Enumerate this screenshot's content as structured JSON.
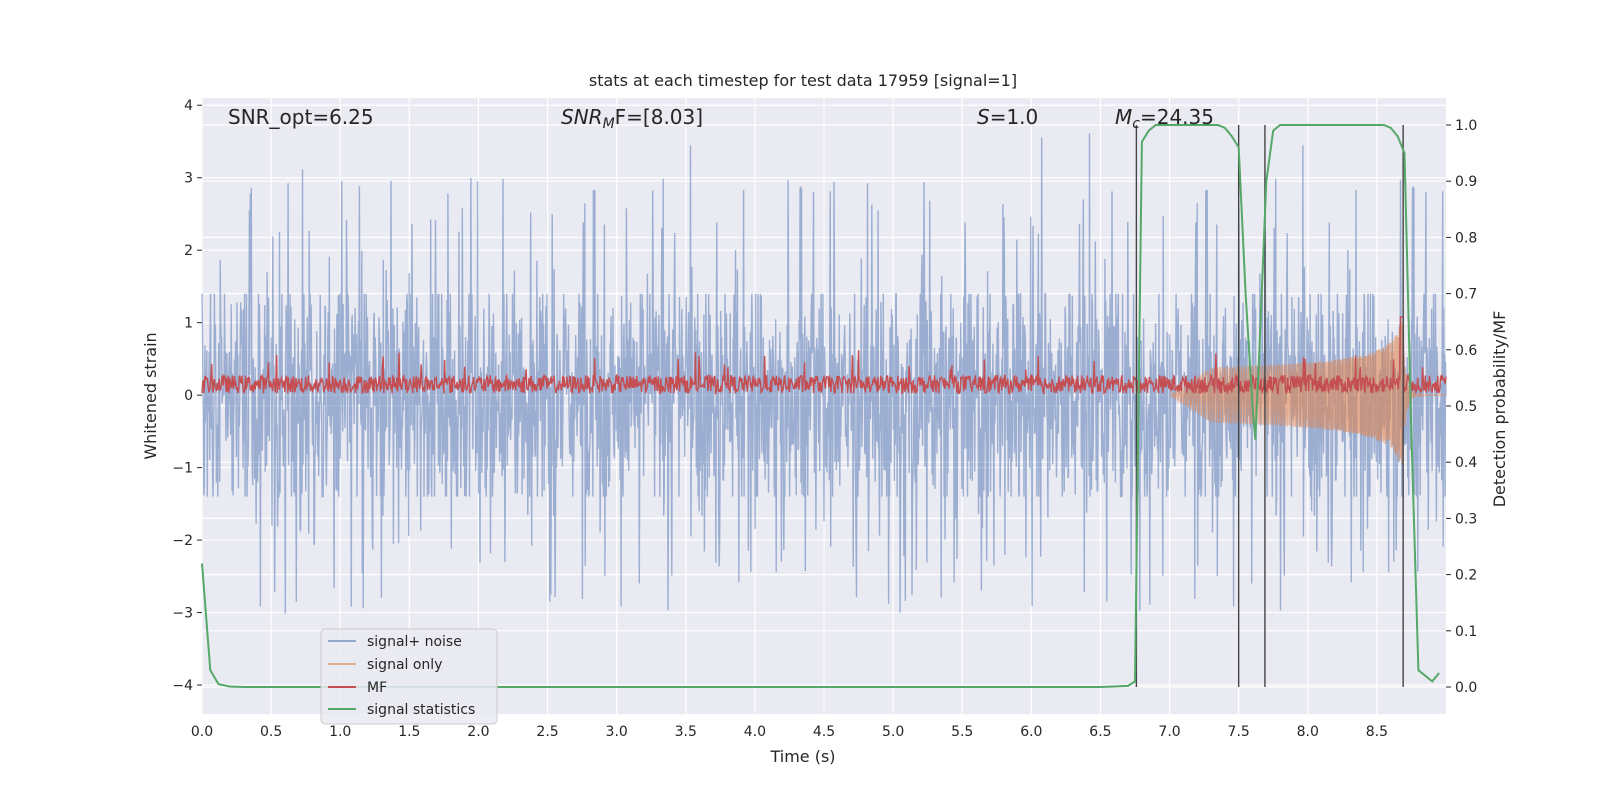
{
  "chart_data": {
    "type": "line",
    "title": "stats at each timestep for test data 17959 [signal=1]",
    "xlabel": "Time (s)",
    "ylabel_left": "Whitened strain",
    "ylabel_right": "Detection probability/MF",
    "xlim": [
      0.0,
      9.0
    ],
    "ylim_left": [
      -4.4,
      4.1
    ],
    "ylim_right": [
      -0.048,
      1.048
    ],
    "xticks": [
      "0.0",
      "0.5",
      "1.0",
      "1.5",
      "2.0",
      "2.5",
      "3.0",
      "3.5",
      "4.0",
      "4.5",
      "5.0",
      "5.5",
      "6.0",
      "6.5",
      "7.0",
      "7.5",
      "8.0",
      "8.5"
    ],
    "xtick_values": [
      0.0,
      0.5,
      1.0,
      1.5,
      2.0,
      2.5,
      3.0,
      3.5,
      4.0,
      4.5,
      5.0,
      5.5,
      6.0,
      6.5,
      7.0,
      7.5,
      8.0,
      8.5
    ],
    "yticks_left": [
      "4",
      "3",
      "2",
      "1",
      "0",
      "−1",
      "−2",
      "−3",
      "−4"
    ],
    "ytick_values_left": [
      4,
      3,
      2,
      1,
      0,
      -1,
      -2,
      -3,
      -4
    ],
    "yticks_right": [
      "1.0",
      "0.9",
      "0.8",
      "0.7",
      "0.6",
      "0.5",
      "0.4",
      "0.3",
      "0.2",
      "0.1",
      "0.0"
    ],
    "ytick_values_right": [
      1.0,
      0.9,
      0.8,
      0.7,
      0.6,
      0.5,
      0.4,
      0.3,
      0.2,
      0.1,
      0.0
    ],
    "annotations": {
      "snr_opt": "SNR_opt=6.25",
      "snr_mf_main": "SNR",
      "snr_mf_sub": "M",
      "snr_mf_rest": "F=[8.03]",
      "s_main": "S",
      "s_rest": "=1.0",
      "mc_main": "M",
      "mc_sub": "c",
      "mc_rest": "=24.35"
    },
    "legend": [
      {
        "label": "signal+ noise",
        "color": "#4c72b0"
      },
      {
        "label": "signal only",
        "color": "#dd8452"
      },
      {
        "label": "MF",
        "color": "#c44e52"
      },
      {
        "label": "signal statistics",
        "color": "#55a868"
      }
    ],
    "series": [
      {
        "name": "signal+ noise",
        "kind": "noise",
        "amplitude_typical": 1.4,
        "peak_max": 3.7,
        "peak_min": -4.0
      },
      {
        "name": "signal only",
        "kind": "chirp",
        "start": 7.0,
        "merger": 8.68,
        "peak": 1.1
      },
      {
        "name": "MF",
        "kind": "mf",
        "baseline": 0.15,
        "spread": 0.25
      },
      {
        "name": "signal statistics",
        "x": [
          0.0,
          0.06,
          0.12,
          0.2,
          0.3,
          0.5,
          1.0,
          2.0,
          3.0,
          4.0,
          5.0,
          6.0,
          6.5,
          6.7,
          6.75,
          6.8,
          6.85,
          6.9,
          7.0,
          7.2,
          7.35,
          7.4,
          7.45,
          7.5,
          7.55,
          7.6,
          7.62,
          7.65,
          7.7,
          7.75,
          7.8,
          7.9,
          8.0,
          8.2,
          8.4,
          8.55,
          8.6,
          8.65,
          8.7,
          8.75,
          8.8,
          8.85,
          8.9,
          8.95
        ],
        "y": [
          0.22,
          0.03,
          0.005,
          0.001,
          0.0,
          0.0,
          0.0,
          0.0,
          0.0,
          0.0,
          0.0,
          0.0,
          0.0,
          0.002,
          0.01,
          0.97,
          0.99,
          1.0,
          1.0,
          1.0,
          1.0,
          0.995,
          0.98,
          0.96,
          0.7,
          0.5,
          0.44,
          0.6,
          0.9,
          0.99,
          1.0,
          1.0,
          1.0,
          1.0,
          1.0,
          1.0,
          0.995,
          0.98,
          0.95,
          0.45,
          0.03,
          0.02,
          0.01,
          0.025
        ]
      }
    ],
    "vlines": [
      6.76,
      7.5,
      7.69,
      8.69
    ],
    "grid": true,
    "legend_position": "lower-left"
  }
}
